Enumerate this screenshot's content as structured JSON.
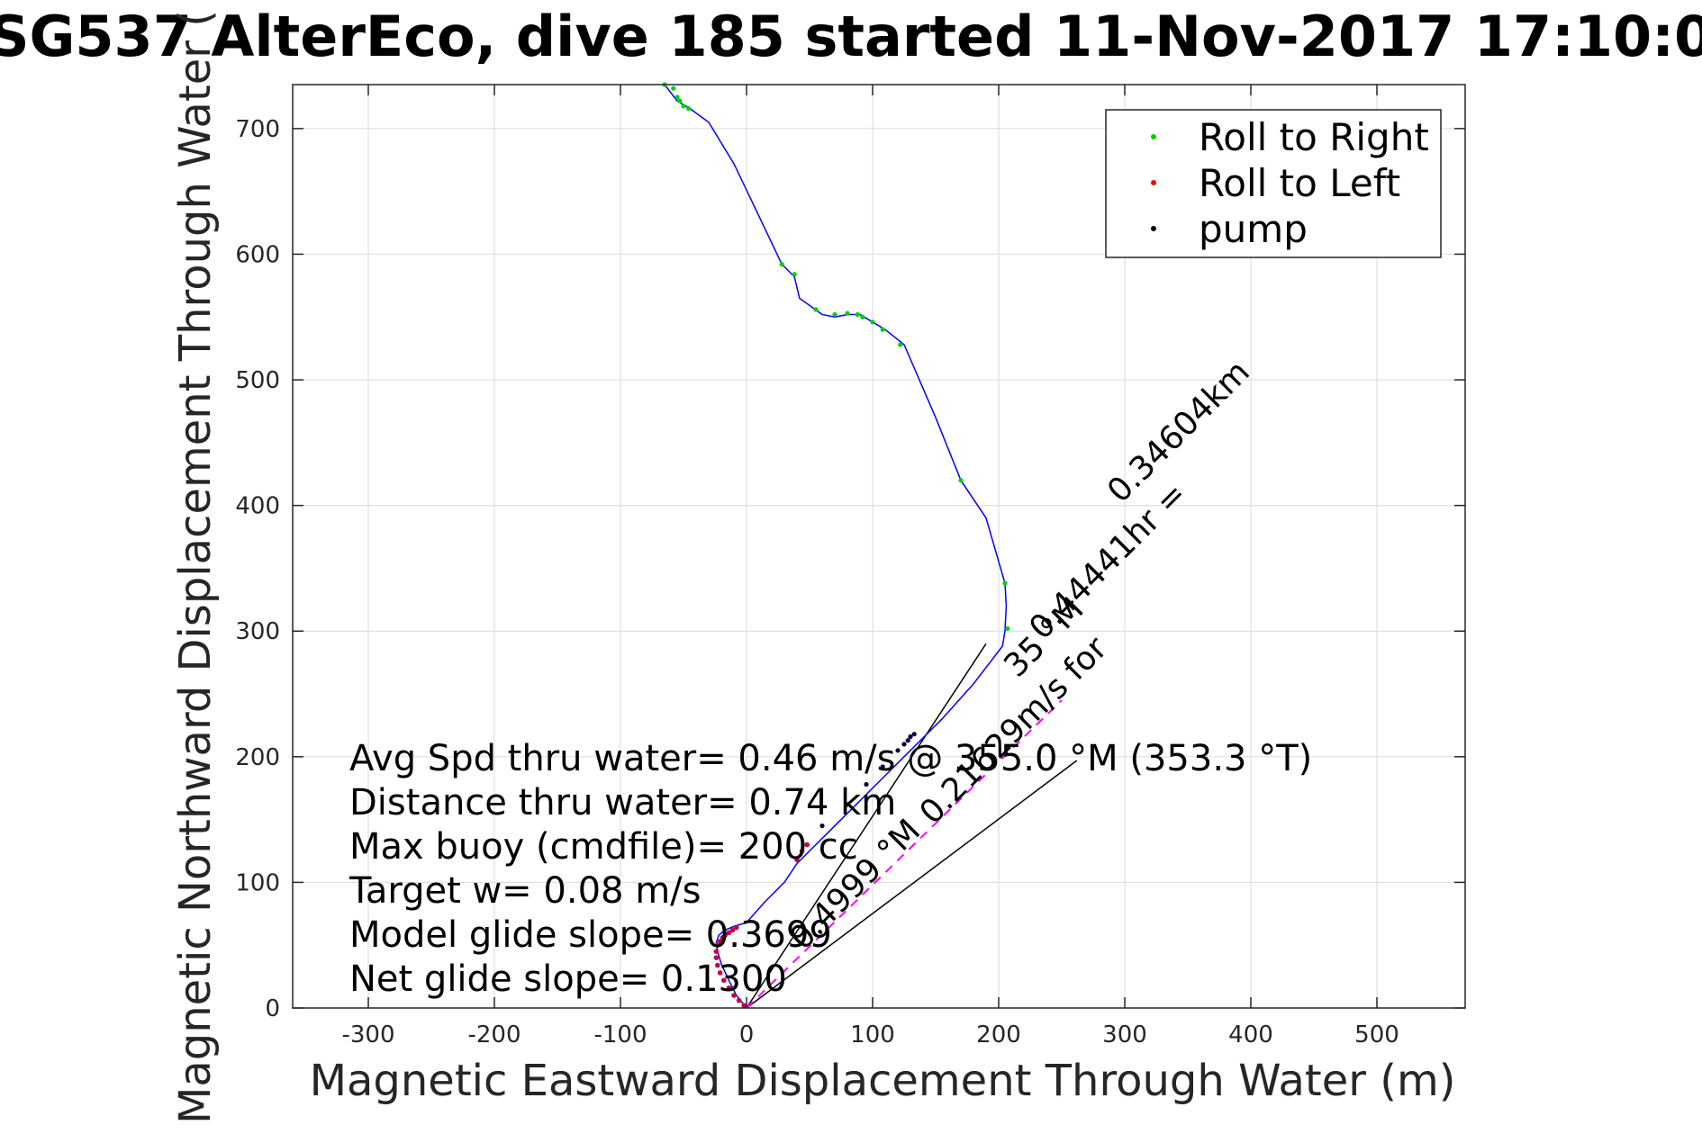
{
  "chart_data": {
    "type": "scatter",
    "title": "SG537 AlterEco, dive 185 started 11-Nov-2017 17:10:0",
    "xlabel": "Magnetic Eastward Displacement Through Water (m)",
    "ylabel": "Magnetic Northward Displacement Through Water (",
    "xlim": [
      -360,
      570
    ],
    "ylim": [
      0,
      735
    ],
    "xticks": [
      -300,
      -200,
      -100,
      0,
      100,
      200,
      300,
      400,
      500
    ],
    "yticks": [
      0,
      100,
      200,
      300,
      400,
      500,
      600,
      700
    ],
    "grid": true,
    "legend_position": "top-right",
    "legend": [
      {
        "label": "Roll to Right",
        "color": "#00d000"
      },
      {
        "label": "Roll to Left",
        "color": "#ff0000"
      },
      {
        "label": "pump",
        "color": "#000000"
      }
    ],
    "track": {
      "name": "",
      "color": "#0000ff",
      "x": [
        0,
        -8,
        -14,
        -20,
        -23,
        -24,
        -22,
        -17,
        -10,
        0,
        15,
        30,
        40,
        55,
        70,
        90,
        110,
        130,
        155,
        180,
        203,
        205,
        206,
        205,
        190,
        170,
        150,
        125,
        110,
        100,
        90,
        80,
        70,
        60,
        42,
        38,
        28,
        10,
        -10,
        -30,
        -45,
        -55,
        -65
      ],
      "y": [
        0,
        10,
        22,
        35,
        45,
        52,
        58,
        62,
        65,
        68,
        85,
        100,
        115,
        130,
        145,
        165,
        185,
        205,
        230,
        258,
        288,
        300,
        320,
        338,
        390,
        420,
        470,
        528,
        540,
        546,
        552,
        552,
        550,
        552,
        565,
        582,
        592,
        630,
        672,
        705,
        716,
        722,
        735
      ]
    },
    "roll_right_points": {
      "x": [
        -65,
        -58,
        -55,
        -53,
        -50,
        -46,
        28,
        38,
        55,
        70,
        80,
        88,
        92,
        100,
        108,
        122,
        170,
        205,
        207
      ],
      "y": [
        735,
        732,
        725,
        722,
        718,
        716,
        592,
        584,
        556,
        552,
        553,
        552,
        550,
        546,
        540,
        528,
        420,
        338,
        302
      ]
    },
    "roll_left_points": {
      "x": [
        -2,
        -6,
        -10,
        -14,
        -18,
        -21,
        -23,
        -24,
        -24,
        -23,
        -21,
        -19,
        -17,
        -14,
        -11,
        -8,
        40,
        44,
        48
      ],
      "y": [
        2,
        6,
        10,
        16,
        22,
        28,
        34,
        40,
        45,
        50,
        53,
        56,
        58,
        60,
        62,
        64,
        118,
        125,
        130
      ]
    },
    "pump_points": {
      "x": [
        60,
        80,
        95,
        108,
        120,
        125,
        128,
        130,
        133
      ],
      "y": [
        145,
        162,
        178,
        192,
        205,
        210,
        213,
        216,
        218
      ]
    },
    "dac_dashed": {
      "color": "#ff00ff",
      "x": [
        0,
        250
      ],
      "y": [
        0,
        245
      ]
    },
    "vector_lines": [
      {
        "x": [
          0,
          190
        ],
        "y": [
          0,
          290
        ]
      },
      {
        "x": [
          0,
          262
        ],
        "y": [
          0,
          197
        ]
      }
    ],
    "vector_labels": [
      {
        "text": "0.34604km",
        "x": 297,
        "y": 401,
        "angle": -45
      },
      {
        "text": "0.44441hr =",
        "x": 235,
        "y": 292,
        "angle": -45
      },
      {
        "text": "35 °M",
        "x": 215,
        "y": 262,
        "angle": -45
      },
      {
        "text": "0.21629m/s for",
        "x": 148,
        "y": 145,
        "angle": -45
      },
      {
        "text": "0.4999 °M",
        "x": 45,
        "y": 45,
        "angle": -45
      }
    ],
    "annotations": [
      "Avg Spd thru water=  0.46 m/s @ 355.0 °M (353.3 °T)",
      "Distance thru water=  0.74 km",
      "Max buoy (cmdfile)= 200 cc",
      "Target w= 0.08 m/s",
      "Model glide slope= 0.3699",
      "Net glide slope= 0.1300"
    ]
  }
}
